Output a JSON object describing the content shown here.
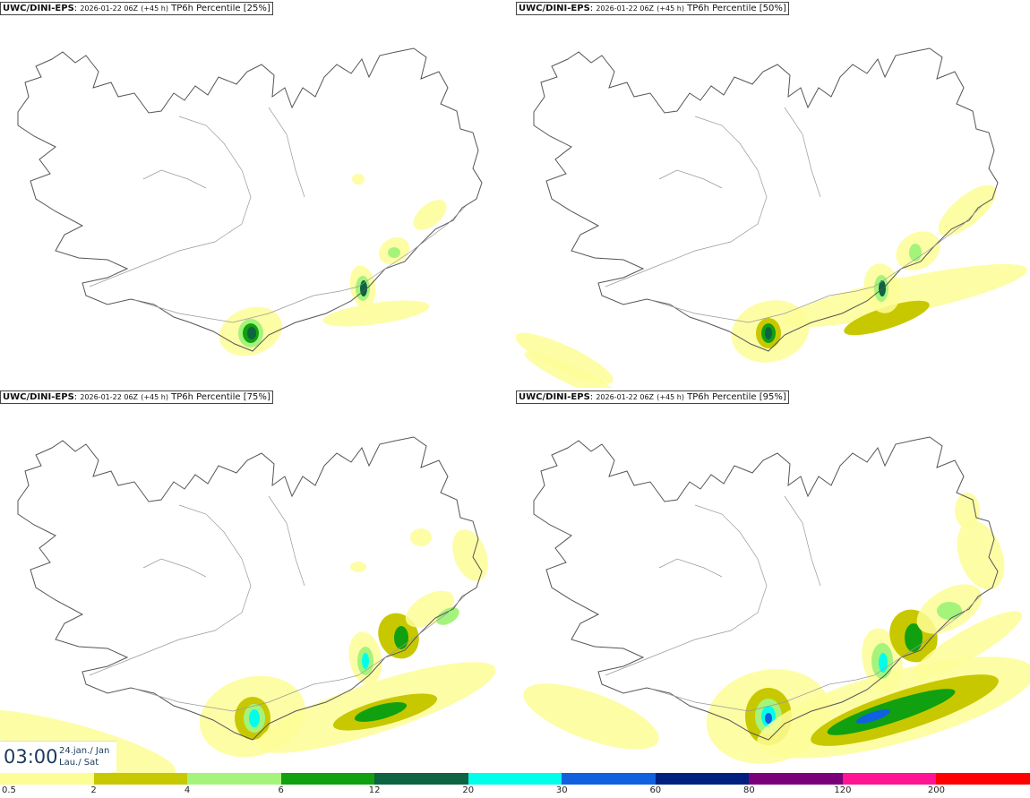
{
  "panels": [
    {
      "model": "UWC/DINI-EPS",
      "run": "2026-01-22 06Z",
      "lead": "(+45 h)",
      "product": "TP6h Percentile [25%]",
      "level": 0
    },
    {
      "model": "UWC/DINI-EPS",
      "run": "2026-01-22 06Z",
      "lead": "(+45 h)",
      "product": "TP6h Percentile [50%]",
      "level": 1
    },
    {
      "model": "UWC/DINI-EPS",
      "run": "2026-01-22 06Z",
      "lead": "(+45 h)",
      "product": "TP6h Percentile [75%]",
      "level": 2
    },
    {
      "model": "UWC/DINI-EPS",
      "run": "2026-01-22 06Z",
      "lead": "(+45 h)",
      "product": "TP6h Percentile [95%]",
      "level": 3
    }
  ],
  "valid_time": {
    "time": "03:00",
    "date_line1": "24.jan./ Jan",
    "date_line2": "Lau./ Sat"
  },
  "legend": {
    "ticks": [
      "0.5",
      "2",
      "4",
      "6",
      "12",
      "20",
      "30",
      "60",
      "80",
      "120",
      "200"
    ],
    "colors": [
      "#fdfd96",
      "#c8c800",
      "#a4f47c",
      "#10a010",
      "#0c6440",
      "#00ffea",
      "#1060e0",
      "#002080",
      "#7a007a",
      "#ff1493",
      "#ff0000"
    ]
  },
  "map_colors": {
    "coast": "#555555",
    "roads": "#999999"
  }
}
